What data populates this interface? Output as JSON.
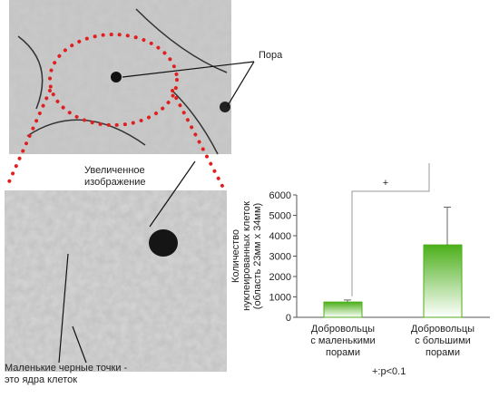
{
  "image_labels": {
    "pore": "Пора",
    "magnified": "Увеличенное\nизображение",
    "nuclei": "Маленькие черные точки -\nэто ядра клеток"
  },
  "chart_data": {
    "type": "bar",
    "y_label": "Количество\nнуклеированных клеток\n(область 23мм x 34мм)",
    "categories": [
      "Добровольцы\nс маленькими\nпорами",
      "Добровольцы\nс большими\nпорами"
    ],
    "values": [
      750,
      3550
    ],
    "errors": [
      100,
      1850
    ],
    "color": "#4caf1a",
    "ylim": [
      0,
      6000
    ],
    "yticks": [
      0,
      1000,
      2000,
      3000,
      4000,
      5000,
      6000
    ],
    "significance": "+",
    "footnote": "+:p<0.1"
  }
}
